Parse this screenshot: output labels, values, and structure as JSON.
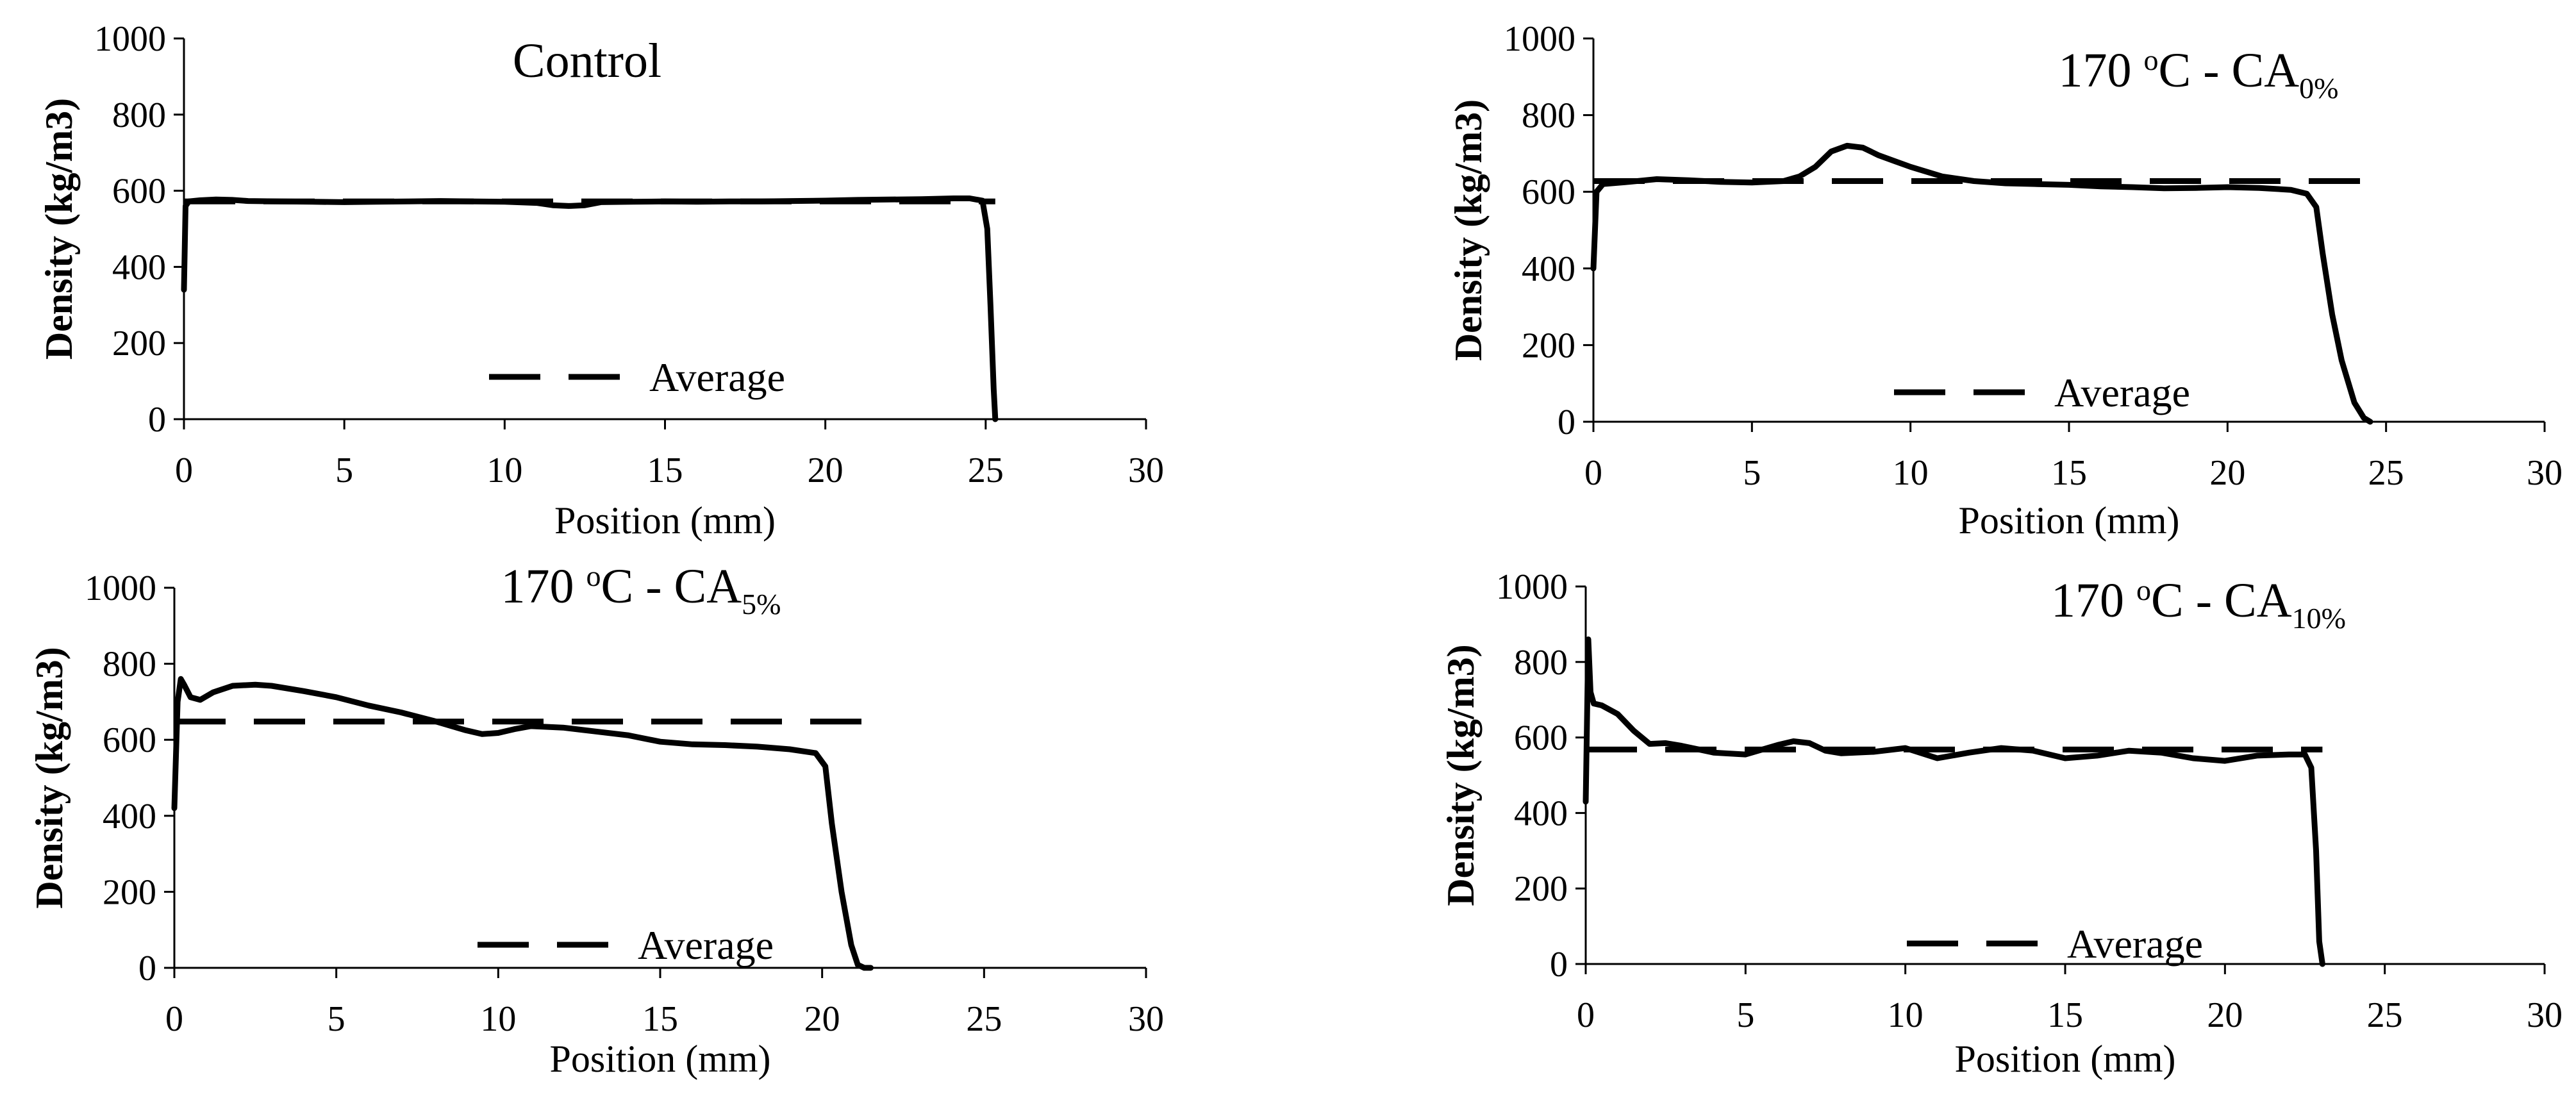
{
  "figure": {
    "description_title": ""
  },
  "chart_data": [
    {
      "type": "line",
      "title": "Control",
      "title_parts": {
        "main": "Control",
        "superscript": "",
        "after": "",
        "subscript": ""
      },
      "xlabel": "Position (mm)",
      "ylabel": "Density (kg/m3)",
      "xlim": [
        0,
        30
      ],
      "ylim": [
        0,
        1000
      ],
      "xticks": [
        0,
        5,
        10,
        15,
        20,
        25,
        30
      ],
      "yticks": [
        0,
        200,
        400,
        600,
        800,
        1000
      ],
      "legend": "Average",
      "series": [
        {
          "name": "Density profile",
          "style": "solid",
          "x": [
            0,
            0.05,
            0.15,
            0.5,
            1,
            1.5,
            2,
            3,
            4,
            5,
            6,
            7,
            8,
            9,
            10,
            11,
            11.5,
            12,
            12.5,
            13,
            14,
            15,
            16,
            17,
            18,
            19,
            20,
            21,
            22,
            23,
            24,
            24.5,
            24.9,
            25.05,
            25.15,
            25.25,
            25.3
          ],
          "y": [
            340,
            560,
            572,
            575,
            577,
            576,
            573,
            572,
            571,
            570,
            571,
            572,
            573,
            572,
            571,
            568,
            562,
            560,
            562,
            570,
            571,
            572,
            571,
            572,
            572,
            573,
            574,
            576,
            577,
            578,
            580,
            580,
            574,
            500,
            300,
            80,
            0
          ]
        },
        {
          "name": "Average",
          "style": "dashed",
          "x": [
            0,
            25.3
          ],
          "y": [
            572,
            572
          ]
        }
      ]
    },
    {
      "type": "line",
      "title": "170 oC - CA0%",
      "title_parts": {
        "main": "170 ",
        "superscript": "o",
        "after": "C - CA",
        "subscript": "0%"
      },
      "xlabel": "Position (mm)",
      "ylabel": "Density (kg/m3)",
      "xlim": [
        0,
        30
      ],
      "ylim": [
        0,
        1000
      ],
      "xticks": [
        0,
        5,
        10,
        15,
        20,
        25,
        30
      ],
      "yticks": [
        0,
        200,
        400,
        600,
        800,
        1000
      ],
      "legend": "Average",
      "series": [
        {
          "name": "Density profile",
          "style": "solid",
          "x": [
            0,
            0.1,
            0.3,
            1,
            2,
            3,
            4,
            5,
            6,
            6.5,
            7,
            7.5,
            8,
            8.5,
            9,
            9.5,
            10,
            11,
            12,
            13,
            14,
            15,
            16,
            17,
            18,
            19,
            20,
            21,
            22,
            22.5,
            22.8,
            23,
            23.3,
            23.6,
            24,
            24.3,
            24.5
          ],
          "y": [
            400,
            600,
            620,
            625,
            633,
            630,
            626,
            624,
            628,
            640,
            665,
            705,
            720,
            715,
            695,
            680,
            665,
            640,
            628,
            622,
            620,
            618,
            614,
            612,
            609,
            610,
            612,
            610,
            605,
            595,
            560,
            440,
            280,
            160,
            50,
            10,
            0
          ]
        },
        {
          "name": "Average",
          "style": "dashed",
          "x": [
            0,
            24.5
          ],
          "y": [
            628,
            628
          ]
        }
      ]
    },
    {
      "type": "line",
      "title": "170 oC - CA5%",
      "title_parts": {
        "main": "170 ",
        "superscript": "o",
        "after": "C - CA",
        "subscript": "5%"
      },
      "xlabel": "Position (mm)",
      "ylabel": "Density (kg/m3)",
      "xlim": [
        0,
        30
      ],
      "ylim": [
        0,
        1000
      ],
      "xticks": [
        0,
        5,
        10,
        15,
        20,
        25,
        30
      ],
      "yticks": [
        0,
        200,
        400,
        600,
        800,
        1000
      ],
      "legend": "Average",
      "series": [
        {
          "name": "Density profile",
          "style": "solid",
          "x": [
            0,
            0.1,
            0.2,
            0.3,
            0.5,
            0.8,
            1.2,
            1.8,
            2.5,
            3,
            4,
            5,
            6,
            7,
            8,
            9,
            9.5,
            10,
            10.5,
            11,
            12,
            13,
            14,
            15,
            16,
            17,
            18,
            19,
            19.8,
            20.1,
            20.3,
            20.6,
            20.9,
            21.1,
            21.3,
            21.5
          ],
          "y": [
            420,
            700,
            760,
            745,
            712,
            705,
            725,
            742,
            745,
            742,
            728,
            712,
            690,
            672,
            650,
            625,
            615,
            618,
            628,
            636,
            632,
            622,
            612,
            595,
            588,
            586,
            582,
            575,
            565,
            530,
            380,
            200,
            60,
            8,
            0,
            0
          ]
        },
        {
          "name": "Average",
          "style": "dashed",
          "x": [
            0,
            21.5
          ],
          "y": [
            648,
            648
          ]
        }
      ]
    },
    {
      "type": "line",
      "title": "170 oC - CA10%",
      "title_parts": {
        "main": "170 ",
        "superscript": "o",
        "after": "C - CA",
        "subscript": "10%"
      },
      "xlabel": "Position (mm)",
      "ylabel": "Density (kg/m3)",
      "xlim": [
        0,
        30
      ],
      "ylim": [
        0,
        1000
      ],
      "xticks": [
        0,
        5,
        10,
        15,
        20,
        25,
        30
      ],
      "yticks": [
        0,
        200,
        400,
        600,
        800,
        1000
      ],
      "legend": "Average",
      "series": [
        {
          "name": "Density profile",
          "style": "solid",
          "x": [
            0,
            0.08,
            0.15,
            0.25,
            0.5,
            1,
            1.5,
            2,
            2.5,
            3,
            4,
            5,
            6,
            6.5,
            7,
            7.5,
            8,
            9,
            10,
            11,
            12,
            13,
            14,
            15,
            16,
            17,
            18,
            19,
            20,
            21,
            22,
            22.5,
            22.7,
            22.85,
            22.95,
            23.05
          ],
          "y": [
            430,
            860,
            720,
            690,
            685,
            662,
            618,
            583,
            585,
            578,
            560,
            555,
            580,
            590,
            585,
            565,
            558,
            562,
            572,
            545,
            560,
            572,
            565,
            545,
            552,
            565,
            560,
            545,
            538,
            552,
            555,
            555,
            520,
            300,
            60,
            0
          ]
        },
        {
          "name": "Average",
          "style": "dashed",
          "x": [
            0,
            23.05
          ],
          "y": [
            568,
            568
          ]
        }
      ]
    }
  ]
}
